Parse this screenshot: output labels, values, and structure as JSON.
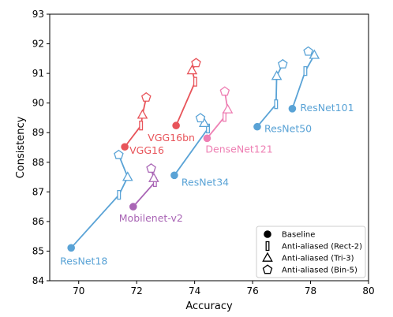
{
  "chart_data": {
    "type": "scatter",
    "xlabel": "Accuracy",
    "ylabel": "Consistency",
    "xlim": [
      69,
      80
    ],
    "ylim": [
      84,
      93
    ],
    "xticks": [
      70,
      72,
      74,
      76,
      78,
      80
    ],
    "yticks": [
      84,
      85,
      86,
      87,
      88,
      89,
      90,
      91,
      92,
      93
    ],
    "grid": false,
    "legend_position": "bottom-right",
    "legend": [
      {
        "marker": "circle",
        "label": "Baseline"
      },
      {
        "marker": "rect",
        "label": "Anti-aliased (Rect-2)"
      },
      {
        "marker": "triangle",
        "label": "Anti-aliased (Tri-3)"
      },
      {
        "marker": "pentagon",
        "label": "Anti-aliased (Bin-5)"
      }
    ],
    "series": [
      {
        "name": "VGG16",
        "color": "#e8545a",
        "baseline": [
          71.59,
          88.52
        ],
        "rect2": [
          72.15,
          89.24
        ],
        "tri3": [
          72.2,
          89.6
        ],
        "bin5": [
          72.33,
          90.19
        ]
      },
      {
        "name": "VGG16bn",
        "color": "#e8545a",
        "baseline": [
          73.36,
          89.24
        ],
        "rect2": [
          74.02,
          90.72
        ],
        "tri3": [
          73.91,
          91.1
        ],
        "bin5": [
          74.05,
          91.35
        ]
      },
      {
        "name": "ResNet18",
        "color": "#5aa3d6",
        "baseline": [
          69.74,
          85.11
        ],
        "rect2": [
          71.39,
          86.9
        ],
        "tri3": [
          71.69,
          87.5
        ],
        "bin5": [
          71.38,
          88.25
        ]
      },
      {
        "name": "ResNet34",
        "color": "#5aa3d6",
        "baseline": [
          73.3,
          87.56
        ],
        "rect2": [
          74.46,
          89.14
        ],
        "tri3": [
          74.33,
          89.32
        ],
        "bin5": [
          74.2,
          89.49
        ]
      },
      {
        "name": "ResNet50",
        "color": "#5aa3d6",
        "baseline": [
          76.16,
          89.2
        ],
        "rect2": [
          76.81,
          89.96
        ],
        "tri3": [
          76.83,
          90.91
        ],
        "bin5": [
          77.04,
          91.31
        ]
      },
      {
        "name": "ResNet101",
        "color": "#5aa3d6",
        "baseline": [
          77.37,
          89.81
        ],
        "rect2": [
          77.82,
          91.08
        ],
        "tri3": [
          78.13,
          91.62
        ],
        "bin5": [
          77.92,
          91.74
        ]
      },
      {
        "name": "DenseNet121",
        "color": "#ee7fb3",
        "baseline": [
          74.43,
          88.81
        ],
        "rect2": [
          75.03,
          89.53
        ],
        "tri3": [
          75.14,
          89.78
        ],
        "bin5": [
          75.04,
          90.39
        ]
      },
      {
        "name": "Mobilenet-v2",
        "color": "#a965b5",
        "baseline": [
          71.88,
          86.5
        ],
        "rect2": [
          72.63,
          87.33
        ],
        "tri3": [
          72.59,
          87.46
        ],
        "bin5": [
          72.5,
          87.79
        ]
      }
    ]
  }
}
